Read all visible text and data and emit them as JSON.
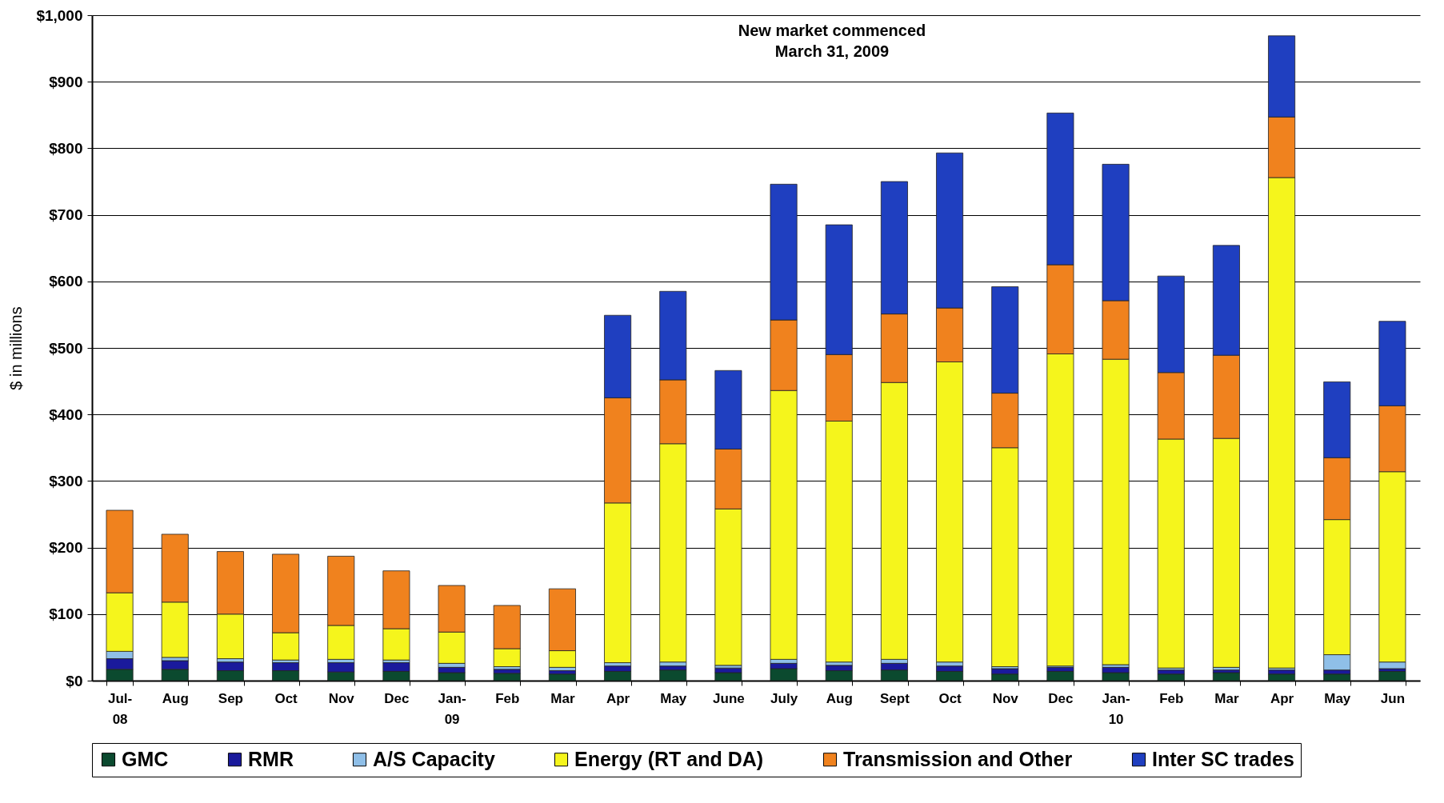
{
  "chart_data": {
    "type": "bar",
    "stacked": true,
    "ylabel": "$ in millions",
    "categories": [
      "Jul-08",
      "Aug",
      "Sep",
      "Oct",
      "Nov",
      "Dec",
      "Jan-09",
      "Feb",
      "Mar",
      "Apr",
      "May",
      "June",
      "July",
      "Aug",
      "Sept",
      "Oct",
      "Nov",
      "Dec",
      "Jan-10",
      "Feb",
      "Mar",
      "Apr",
      "May",
      "Jun"
    ],
    "series": [
      {
        "name": "GMC",
        "color": "#0b4a2f",
        "values": [
          17,
          17,
          15,
          15,
          13,
          14,
          12,
          11,
          10,
          14,
          16,
          12,
          18,
          15,
          16,
          14,
          10,
          14,
          12,
          10,
          12,
          10,
          10,
          14
        ]
      },
      {
        "name": "RMR",
        "color": "#1a1a9c",
        "values": [
          16,
          13,
          13,
          12,
          14,
          13,
          8,
          6,
          5,
          8,
          6,
          7,
          8,
          8,
          10,
          8,
          8,
          6,
          8,
          6,
          4,
          6,
          6,
          4
        ]
      },
      {
        "name": "A/S Capacity",
        "color": "#8fbfe8",
        "values": [
          11,
          5,
          5,
          4,
          5,
          4,
          6,
          4,
          5,
          5,
          6,
          4,
          6,
          5,
          6,
          6,
          3,
          2,
          4,
          3,
          4,
          3,
          23,
          10
        ]
      },
      {
        "name": "Energy (RT and DA)",
        "color": "#f5f51c",
        "values": [
          88,
          83,
          67,
          41,
          51,
          47,
          47,
          27,
          25,
          240,
          328,
          235,
          404,
          362,
          416,
          451,
          329,
          469,
          459,
          344,
          344,
          737,
          203,
          286
        ]
      },
      {
        "name": "Transmission and Other",
        "color": "#f0821e",
        "values": [
          124,
          102,
          94,
          118,
          104,
          87,
          70,
          65,
          93,
          158,
          96,
          90,
          106,
          100,
          103,
          81,
          82,
          134,
          88,
          100,
          125,
          91,
          93,
          99
        ]
      },
      {
        "name": "Inter SC trades",
        "color": "#1f3fc0",
        "values": [
          null,
          null,
          null,
          null,
          null,
          null,
          null,
          null,
          null,
          124,
          133,
          118,
          204,
          195,
          199,
          233,
          160,
          228,
          205,
          145,
          165,
          122,
          114,
          127
        ]
      }
    ],
    "ylim": [
      0,
      1000
    ],
    "yticks": [
      {
        "value": 0,
        "label": "$0"
      },
      {
        "value": 100,
        "label": "$100"
      },
      {
        "value": 200,
        "label": "$200"
      },
      {
        "value": 300,
        "label": "$300"
      },
      {
        "value": 400,
        "label": "$400"
      },
      {
        "value": 500,
        "label": "$500"
      },
      {
        "value": 600,
        "label": "$600"
      },
      {
        "value": 700,
        "label": "$700"
      },
      {
        "value": 800,
        "label": "$800"
      },
      {
        "value": 900,
        "label": "$900"
      },
      {
        "value": 1000,
        "label": "$1,000"
      }
    ],
    "grid": "y",
    "legend": "bottom",
    "annotations": [
      "New market commenced",
      "March 31, 2009"
    ]
  }
}
